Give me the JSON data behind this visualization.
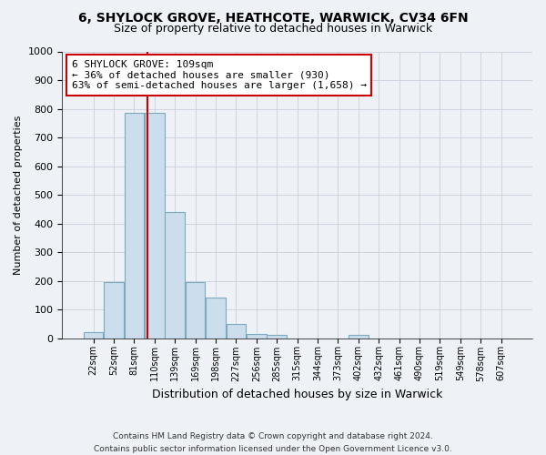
{
  "title": "6, SHYLOCK GROVE, HEATHCOTE, WARWICK, CV34 6FN",
  "subtitle": "Size of property relative to detached houses in Warwick",
  "xlabel": "Distribution of detached houses by size in Warwick",
  "ylabel": "Number of detached properties",
  "bar_color": "#ccdded",
  "bar_edge_color": "#7aaabb",
  "bin_labels": [
    "22sqm",
    "52sqm",
    "81sqm",
    "110sqm",
    "139sqm",
    "169sqm",
    "198sqm",
    "227sqm",
    "256sqm",
    "285sqm",
    "315sqm",
    "344sqm",
    "373sqm",
    "402sqm",
    "432sqm",
    "461sqm",
    "490sqm",
    "519sqm",
    "549sqm",
    "578sqm",
    "607sqm"
  ],
  "bar_heights": [
    20,
    195,
    785,
    785,
    440,
    195,
    140,
    50,
    15,
    10,
    0,
    0,
    0,
    10,
    0,
    0,
    0,
    0,
    0,
    0,
    0
  ],
  "ylim": [
    0,
    1000
  ],
  "yticks": [
    0,
    100,
    200,
    300,
    400,
    500,
    600,
    700,
    800,
    900,
    1000
  ],
  "vline_color": "#cc0000",
  "annotation_title": "6 SHYLOCK GROVE: 109sqm",
  "annotation_line1": "← 36% of detached houses are smaller (930)",
  "annotation_line2": "63% of semi-detached houses are larger (1,658) →",
  "annotation_box_color": "#ffffff",
  "annotation_box_edge": "#cc0000",
  "footer_line1": "Contains HM Land Registry data © Crown copyright and database right 2024.",
  "footer_line2": "Contains public sector information licensed under the Open Government Licence v3.0.",
  "background_color": "#eef2f7",
  "plot_background": "#eef2f7"
}
